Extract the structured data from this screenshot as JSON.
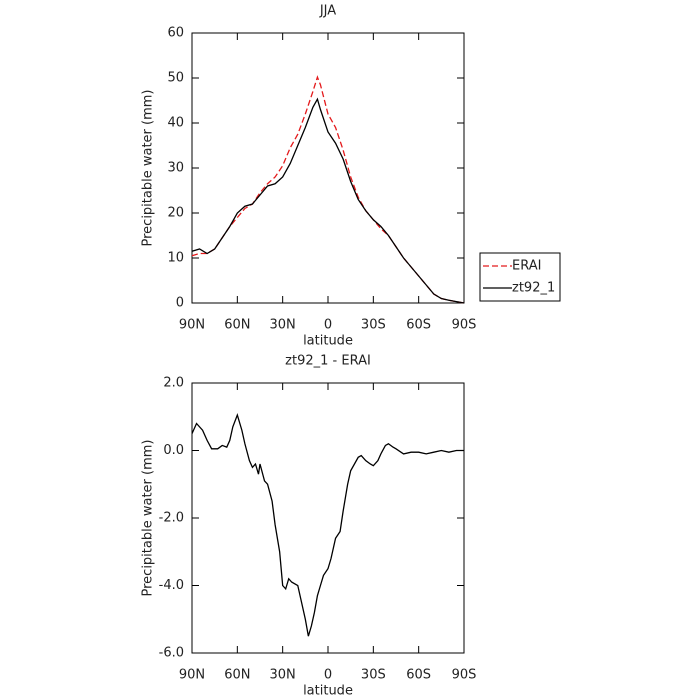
{
  "chart_data": [
    {
      "type": "line",
      "title": "JJA",
      "xlabel": "latitude",
      "ylabel": "Precipitable water (mm)",
      "x": [
        90,
        85,
        80,
        75,
        70,
        65,
        60,
        55,
        50,
        45,
        40,
        35,
        30,
        25,
        20,
        15,
        10,
        7,
        5,
        0,
        -5,
        -10,
        -15,
        -20,
        -25,
        -30,
        -35,
        -40,
        -45,
        -50,
        -55,
        -60,
        -65,
        -70,
        -75,
        -80,
        -85,
        -90
      ],
      "series": [
        {
          "name": "ERAI",
          "color": "#e41a1c",
          "linestyle": "dashed",
          "values": [
            10.5,
            11,
            11,
            12,
            14.5,
            17,
            19,
            21,
            22,
            24.5,
            26.5,
            28,
            30.5,
            34.5,
            37.5,
            42,
            47,
            50.2,
            48.5,
            42,
            39,
            34,
            28,
            23.5,
            20.5,
            18.5,
            16.5,
            15,
            12.5,
            10,
            8,
            6,
            4,
            2,
            1,
            0.6,
            0.3,
            0
          ]
        },
        {
          "name": "zt92_1",
          "color": "#000000",
          "linestyle": "solid",
          "values": [
            11.5,
            12,
            11,
            12,
            14.5,
            17,
            20,
            21.5,
            22,
            24,
            26,
            26.5,
            28,
            31,
            35,
            39,
            43.5,
            45.3,
            43,
            38,
            35.5,
            32,
            27,
            23,
            20.5,
            18.5,
            17,
            15,
            12.5,
            10,
            8,
            6,
            4,
            2,
            1,
            0.6,
            0.3,
            0
          ]
        }
      ],
      "xlim": [
        90,
        -90
      ],
      "xticks": [
        {
          "value": 90,
          "label": "90N"
        },
        {
          "value": 60,
          "label": "60N"
        },
        {
          "value": 30,
          "label": "30N"
        },
        0,
        {
          "value": -30,
          "label": "30S"
        },
        {
          "value": -60,
          "label": "60S"
        },
        {
          "value": -90,
          "label": "90S"
        }
      ],
      "ylim": [
        0,
        60
      ],
      "yticks": [
        0,
        10,
        20,
        30,
        40,
        50,
        60
      ],
      "legend": "right"
    },
    {
      "type": "line",
      "title": "zt92_1 - ERAI",
      "xlabel": "latitude",
      "ylabel": "Precipitable water (mm)",
      "x": [
        90,
        87,
        83,
        80,
        77,
        73,
        70,
        67,
        65,
        63,
        60,
        57,
        55,
        52,
        50,
        48,
        46,
        45,
        42,
        40,
        37,
        35,
        32,
        30,
        28,
        26,
        24,
        20,
        18,
        15,
        13,
        11,
        9,
        7,
        5,
        3,
        0,
        -2,
        -5,
        -8,
        -10,
        -13,
        -15,
        -20,
        -22,
        -25,
        -28,
        -30,
        -33,
        -35,
        -38,
        -40,
        -43,
        -45,
        -50,
        -55,
        -60,
        -65,
        -70,
        -75,
        -80,
        -85,
        -90
      ],
      "series": [
        {
          "name": "zt92_1 - ERAI",
          "color": "#000000",
          "linestyle": "solid",
          "values": [
            0.5,
            0.8,
            0.6,
            0.3,
            0.05,
            0.05,
            0.15,
            0.1,
            0.3,
            0.7,
            1.05,
            0.6,
            0.2,
            -0.3,
            -0.5,
            -0.4,
            -0.7,
            -0.4,
            -0.9,
            -1.0,
            -1.5,
            -2.2,
            -3.0,
            -4.0,
            -4.1,
            -3.8,
            -3.9,
            -4.0,
            -4.4,
            -5.0,
            -5.5,
            -5.2,
            -4.8,
            -4.3,
            -4.0,
            -3.7,
            -3.5,
            -3.2,
            -2.6,
            -2.4,
            -1.8,
            -1.0,
            -0.6,
            -0.2,
            -0.15,
            -0.3,
            -0.4,
            -0.45,
            -0.3,
            -0.1,
            0.15,
            0.2,
            0.1,
            0.05,
            -0.1,
            -0.05,
            -0.05,
            -0.1,
            -0.05,
            0,
            -0.05,
            0,
            0
          ]
        }
      ],
      "xlim": [
        90,
        -90
      ],
      "xticks": [
        {
          "value": 90,
          "label": "90N"
        },
        {
          "value": 60,
          "label": "60N"
        },
        {
          "value": 30,
          "label": "30N"
        },
        0,
        {
          "value": -30,
          "label": "30S"
        },
        {
          "value": -60,
          "label": "60S"
        },
        {
          "value": -90,
          "label": "90S"
        }
      ],
      "ylim": [
        -6,
        2
      ],
      "yticks": [
        {
          "value": -6,
          "label": "-6.0"
        },
        {
          "value": -4,
          "label": "-4.0"
        },
        {
          "value": -2,
          "label": "-2.0"
        },
        {
          "value": 0,
          "label": "0.0"
        },
        {
          "value": 2,
          "label": "2.0"
        }
      ]
    }
  ]
}
